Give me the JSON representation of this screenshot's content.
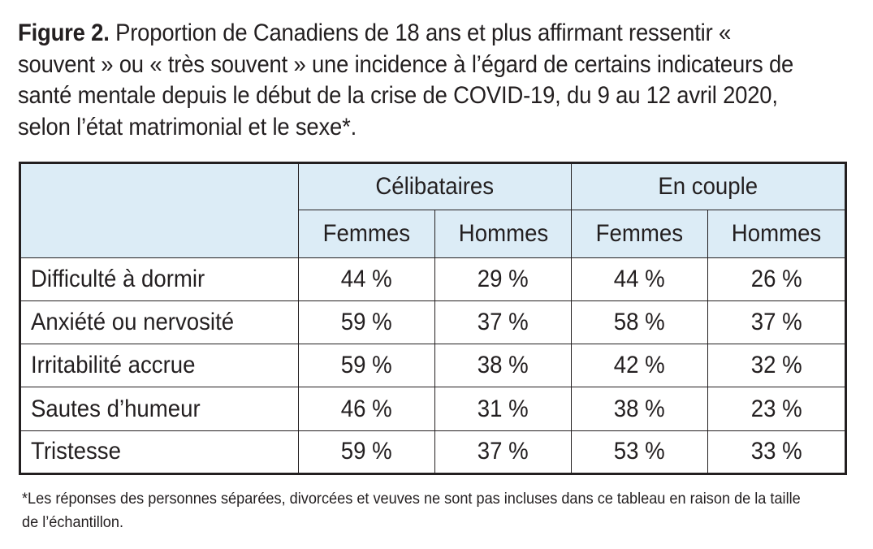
{
  "title": {
    "label": "Figure 2.",
    "text": " Proportion de Canadiens de 18 ans et plus affirmant ressentir « souvent » ou « très souvent » une incidence à l’égard de certains indicateurs de santé mentale depuis le début de la crise de COVID-19, du 9 au 12 avril 2020, selon l’état matrimonial et le sexe*."
  },
  "chart_data": {
    "type": "table",
    "groups": [
      {
        "name": "Célibataires",
        "columns": [
          "Femmes",
          "Hommes"
        ]
      },
      {
        "name": "En couple",
        "columns": [
          "Femmes",
          "Hommes"
        ]
      }
    ],
    "rows": [
      {
        "label": "Difficulté à dormir",
        "values": [
          "44 %",
          "29 %",
          "44 %",
          "26 %"
        ]
      },
      {
        "label": "Anxiété ou nervosité",
        "values": [
          "59 %",
          "37 %",
          "58 %",
          "37 %"
        ]
      },
      {
        "label": "Irritabilité accrue",
        "values": [
          "59 %",
          "38 %",
          "42 %",
          "32 %"
        ]
      },
      {
        "label": "Sautes d’humeur",
        "values": [
          "46 %",
          "31 %",
          "38 %",
          "23 %"
        ]
      },
      {
        "label": "Tristesse",
        "values": [
          "59 %",
          "37 %",
          "53 %",
          "33 %"
        ]
      }
    ],
    "header_fill": "#dcecf6"
  },
  "footnote": "*Les réponses des personnes séparées, divorcées et veuves ne sont pas incluses dans ce tableau en raison de la taille de l’échantillon."
}
